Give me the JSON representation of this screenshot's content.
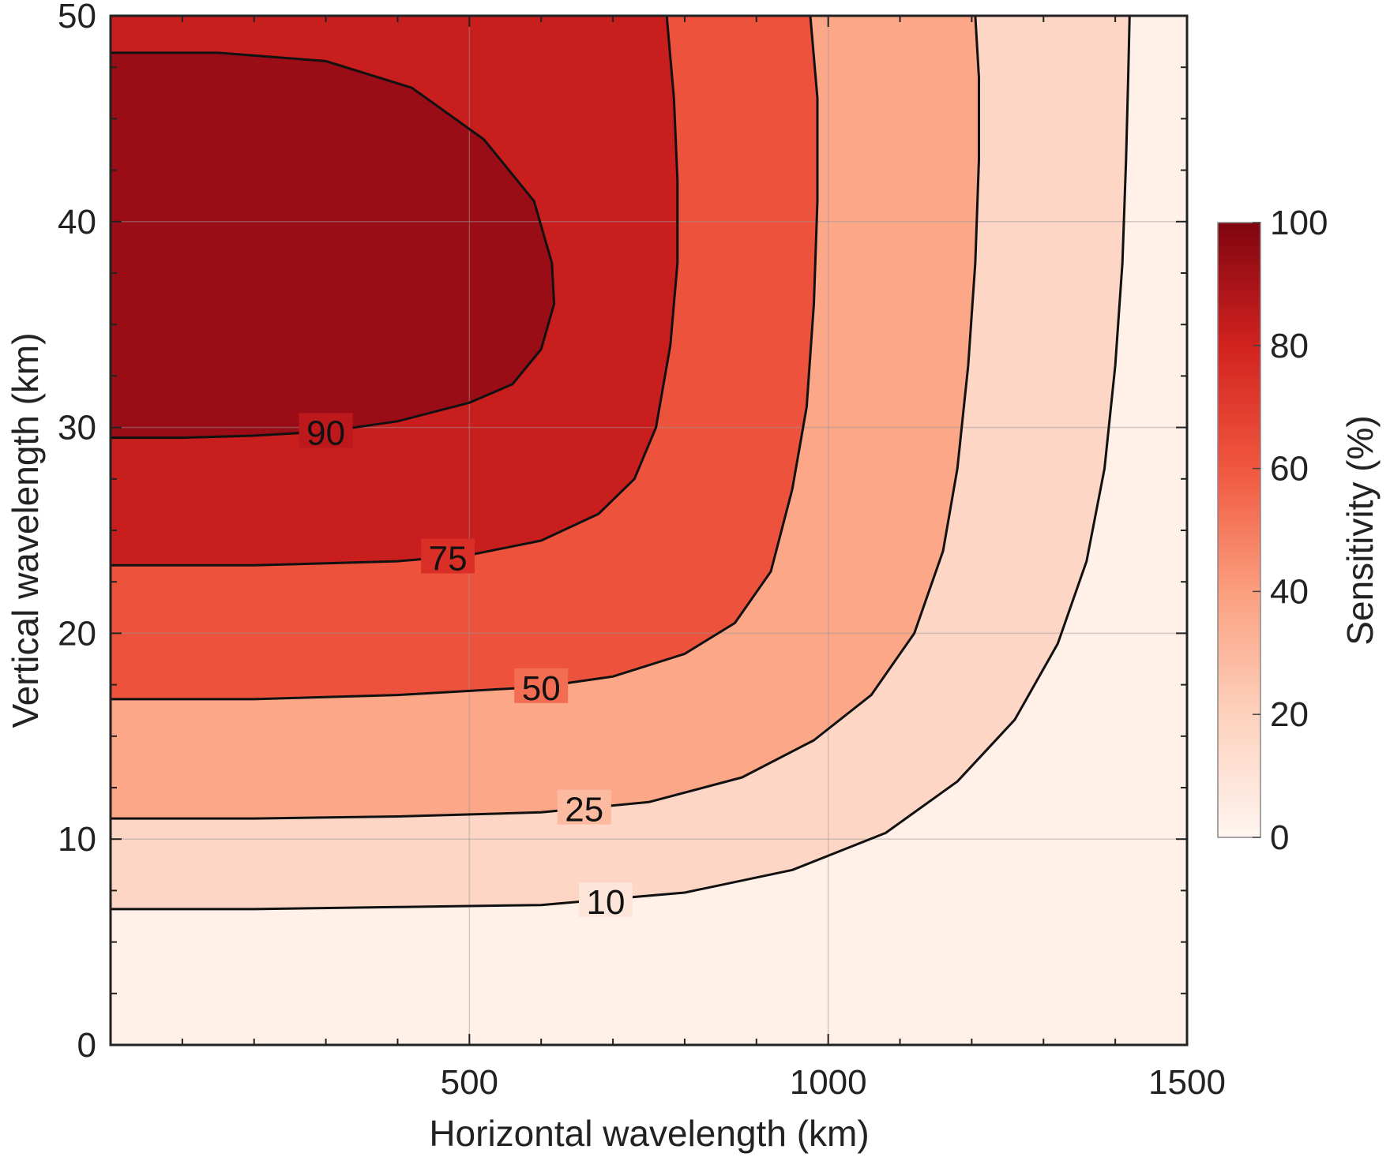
{
  "chart_data": {
    "type": "contour",
    "title": "",
    "xlabel": "Horizontal wavelength (km)",
    "ylabel": "Vertical wavelength (km)",
    "xlim": [
      0,
      1500
    ],
    "ylim": [
      0,
      50
    ],
    "x_ticks": [
      "500",
      "1000",
      "1500"
    ],
    "y_ticks": [
      "0",
      "10",
      "20",
      "30",
      "40",
      "50"
    ],
    "grid": true,
    "colorbar": {
      "label": "Sensitivity (%)",
      "range": [
        0,
        100
      ],
      "ticks": [
        "0",
        "20",
        "40",
        "60",
        "80",
        "100"
      ]
    },
    "contour_levels": [
      {
        "level": 90,
        "label": "90",
        "label_at": [
          300,
          29.7
        ],
        "points": [
          [
            0,
            29.5
          ],
          [
            100,
            29.5
          ],
          [
            200,
            29.6
          ],
          [
            300,
            29.8
          ],
          [
            400,
            30.3
          ],
          [
            500,
            31.2
          ],
          [
            560,
            32.1
          ],
          [
            600,
            33.8
          ],
          [
            618,
            36
          ],
          [
            615,
            38
          ],
          [
            590,
            41
          ],
          [
            520,
            44
          ],
          [
            420,
            46.5
          ],
          [
            300,
            47.8
          ],
          [
            150,
            48.2
          ],
          [
            0,
            48.2
          ]
        ]
      },
      {
        "level": 75,
        "label": "75",
        "label_at": [
          470,
          23.6
        ],
        "points": [
          [
            0,
            23.3
          ],
          [
            100,
            23.3
          ],
          [
            200,
            23.3
          ],
          [
            300,
            23.4
          ],
          [
            400,
            23.5
          ],
          [
            500,
            23.8
          ],
          [
            600,
            24.5
          ],
          [
            680,
            25.8
          ],
          [
            730,
            27.5
          ],
          [
            760,
            30
          ],
          [
            780,
            34
          ],
          [
            790,
            38
          ],
          [
            790,
            42
          ],
          [
            785,
            46
          ],
          [
            775,
            50
          ]
        ]
      },
      {
        "level": 50,
        "label": "50",
        "label_at": [
          600,
          17.3
        ],
        "points": [
          [
            0,
            16.8
          ],
          [
            200,
            16.8
          ],
          [
            400,
            17
          ],
          [
            600,
            17.4
          ],
          [
            700,
            17.9
          ],
          [
            800,
            19
          ],
          [
            870,
            20.5
          ],
          [
            920,
            23
          ],
          [
            950,
            27
          ],
          [
            970,
            31
          ],
          [
            980,
            36
          ],
          [
            985,
            41
          ],
          [
            985,
            46
          ],
          [
            975,
            50
          ]
        ]
      },
      {
        "level": 25,
        "label": "25",
        "label_at": [
          660,
          11.4
        ],
        "points": [
          [
            0,
            11
          ],
          [
            200,
            11
          ],
          [
            400,
            11.1
          ],
          [
            600,
            11.3
          ],
          [
            750,
            11.8
          ],
          [
            880,
            13
          ],
          [
            980,
            14.8
          ],
          [
            1060,
            17
          ],
          [
            1120,
            20
          ],
          [
            1160,
            24
          ],
          [
            1180,
            28
          ],
          [
            1195,
            33
          ],
          [
            1205,
            38
          ],
          [
            1210,
            43
          ],
          [
            1210,
            47
          ],
          [
            1205,
            50
          ]
        ]
      },
      {
        "level": 10,
        "label": "10",
        "label_at": [
          690,
          6.9
        ],
        "points": [
          [
            0,
            6.6
          ],
          [
            200,
            6.6
          ],
          [
            400,
            6.7
          ],
          [
            600,
            6.8
          ],
          [
            800,
            7.4
          ],
          [
            950,
            8.5
          ],
          [
            1080,
            10.3
          ],
          [
            1180,
            12.8
          ],
          [
            1260,
            15.8
          ],
          [
            1320,
            19.5
          ],
          [
            1360,
            23.5
          ],
          [
            1385,
            28
          ],
          [
            1400,
            33
          ],
          [
            1410,
            38
          ],
          [
            1415,
            43
          ],
          [
            1418,
            47
          ],
          [
            1420,
            50
          ]
        ]
      }
    ]
  }
}
